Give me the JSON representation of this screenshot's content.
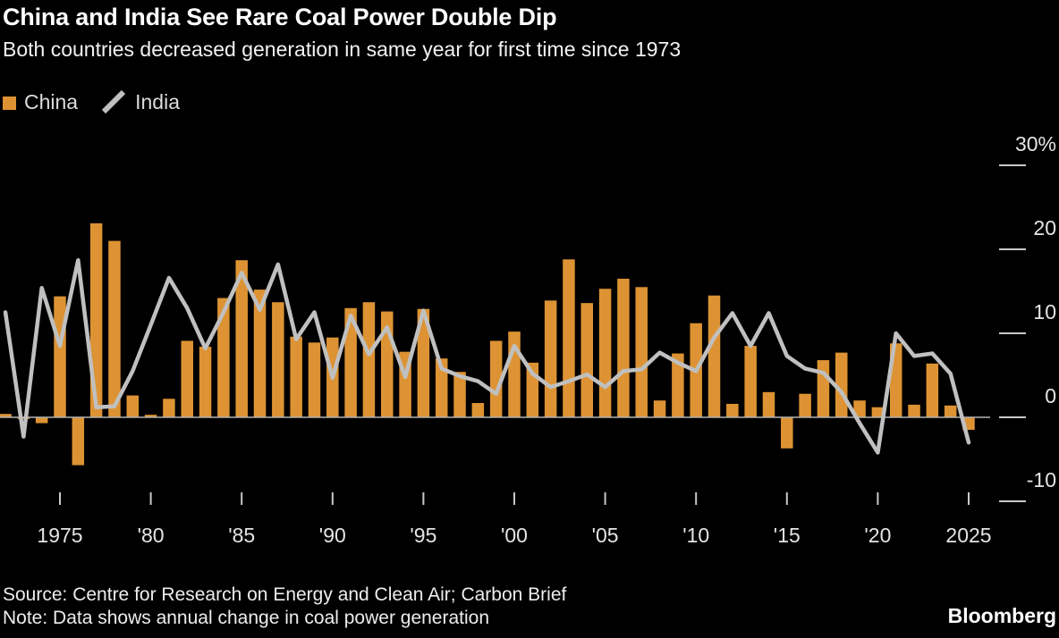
{
  "header": {
    "title": "China and India See Rare Coal Power Double Dip",
    "subtitle": "Both countries decreased generation in same year for first time since 1973"
  },
  "footer": {
    "source": "Source: Centre for Research on Energy and Clean Air; Carbon Brief",
    "note": "Note: Data shows annual change in coal power generation",
    "logo": "Bloomberg"
  },
  "chart_data": {
    "type": "bar",
    "title": "China and India See Rare Coal Power Double Dip",
    "subtitle": "Both countries decreased generation in same year for first time since 1973",
    "unit": "%",
    "ylim": [
      -13,
      32
    ],
    "grid": false,
    "legend_position": "top-left",
    "background_color": "#000000",
    "x": [
      1972,
      1973,
      1974,
      1975,
      1976,
      1977,
      1978,
      1979,
      1980,
      1981,
      1982,
      1983,
      1984,
      1985,
      1986,
      1987,
      1988,
      1989,
      1990,
      1991,
      1992,
      1993,
      1994,
      1995,
      1996,
      1997,
      1998,
      1999,
      2000,
      2001,
      2002,
      2003,
      2004,
      2005,
      2006,
      2007,
      2008,
      2009,
      2010,
      2011,
      2012,
      2013,
      2014,
      2015,
      2016,
      2017,
      2018,
      2019,
      2020,
      2021,
      2022,
      2023,
      2024,
      2025
    ],
    "series": [
      {
        "name": "China",
        "type": "bar",
        "color": "#DD9333",
        "values": [
          0.4,
          -0.2,
          -0.7,
          14.4,
          -5.7,
          23.1,
          21.0,
          2.6,
          0.3,
          2.2,
          9.1,
          8.4,
          14.2,
          18.7,
          15.2,
          13.7,
          9.6,
          8.9,
          9.5,
          13.0,
          13.7,
          12.6,
          7.8,
          12.9,
          7.0,
          5.4,
          1.7,
          9.1,
          10.2,
          6.5,
          13.9,
          18.8,
          13.6,
          15.3,
          16.5,
          15.5,
          2.0,
          7.6,
          11.2,
          14.5,
          1.6,
          8.5,
          3.0,
          -3.7,
          2.8,
          6.8,
          7.7,
          2.0,
          1.2,
          8.8,
          1.5,
          6.4,
          1.4,
          -1.5
        ]
      },
      {
        "name": "India",
        "type": "line",
        "color": "#C0C0C0",
        "values": [
          12.5,
          -2.3,
          15.4,
          8.5,
          18.7,
          1.2,
          1.3,
          5.5,
          11.0,
          16.6,
          13.0,
          8.2,
          12.5,
          17.2,
          12.8,
          18.2,
          9.3,
          12.5,
          4.7,
          12.1,
          7.5,
          10.7,
          4.8,
          12.7,
          5.8,
          4.9,
          4.3,
          2.8,
          8.5,
          5.2,
          3.6,
          4.3,
          5.1,
          3.6,
          5.5,
          5.7,
          7.7,
          6.5,
          5.5,
          9.5,
          12.4,
          8.5,
          12.4,
          7.3,
          5.8,
          5.3,
          3.0,
          -0.7,
          -4.2,
          10.0,
          7.3,
          7.6,
          5.2,
          -3.0
        ]
      }
    ],
    "yticks": [
      {
        "value": 30,
        "label": "30%"
      },
      {
        "value": 20,
        "label": "20"
      },
      {
        "value": 10,
        "label": "10"
      },
      {
        "value": 0,
        "label": "0"
      },
      {
        "value": -10,
        "label": "-10"
      }
    ],
    "xticks": [
      {
        "year": 1975,
        "label": "1975"
      },
      {
        "year": 1980,
        "label": "'80"
      },
      {
        "year": 1985,
        "label": "'85"
      },
      {
        "year": 1990,
        "label": "'90"
      },
      {
        "year": 1995,
        "label": "'95"
      },
      {
        "year": 2000,
        "label": "'00"
      },
      {
        "year": 2005,
        "label": "'05"
      },
      {
        "year": 2010,
        "label": "'10"
      },
      {
        "year": 2015,
        "label": "'15"
      },
      {
        "year": 2020,
        "label": "'20"
      },
      {
        "year": 2025,
        "label": "2025"
      }
    ]
  }
}
